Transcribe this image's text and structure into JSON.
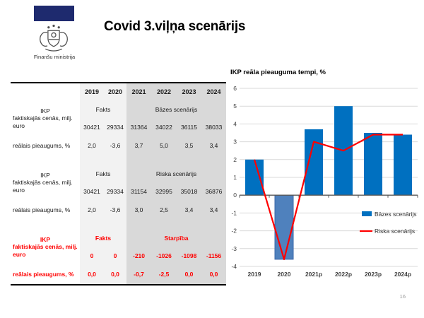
{
  "header": {
    "ministry": "Finanšu ministrija",
    "title": "Covid 3.viļņa scenārijs"
  },
  "table": {
    "col_headers": [
      "2019",
      "2020",
      "2021",
      "2022",
      "2023",
      "2024"
    ],
    "blocks": [
      {
        "label_top": "IKP",
        "label_rest": "faktiskajās cenās, milj. euro",
        "fact_header": "Fakts",
        "scenario_header": "Bāzes scenārijs",
        "values": [
          "30421",
          "29334",
          "31364",
          "34022",
          "36115",
          "38033"
        ],
        "growth_label": "reālais pieaugums, %",
        "growth_values": [
          "2,0",
          "-3,6",
          "3,7",
          "5,0",
          "3,5",
          "3,4"
        ]
      },
      {
        "label_top": "IKP",
        "label_rest": "faktiskajās cenās, milj. euro",
        "fact_header": "Fakts",
        "scenario_header": "Riska scenārijs",
        "values": [
          "30421",
          "29334",
          "31154",
          "32995",
          "35018",
          "36876"
        ],
        "growth_label": "reālais pieaugums, %",
        "growth_values": [
          "2,0",
          "-3,6",
          "3,0",
          "2,5",
          "3,4",
          "3,4"
        ]
      },
      {
        "label_top": "IKP",
        "label_rest": "faktiskajās cenās, milj. euro",
        "fact_header": "Fakts",
        "scenario_header": "Starpība",
        "values": [
          "0",
          "0",
          "-210",
          "-1026",
          "-1098",
          "-1156"
        ],
        "growth_label": "reālais pieaugums, %",
        "growth_values": [
          "0,0",
          "0,0",
          "-0,7",
          "-2,5",
          "0,0",
          "0,0"
        ]
      }
    ]
  },
  "chart_data": {
    "type": "bar",
    "title": "IKP reāla pieauguma tempi, %",
    "categories": [
      "2019",
      "2020",
      "2021p",
      "2022p",
      "2023p",
      "2024p"
    ],
    "series": [
      {
        "name": "Bāzes scenārijs",
        "type": "bar",
        "values": [
          2.0,
          -3.6,
          3.7,
          5.0,
          3.5,
          3.4
        ],
        "color": "#0070C0",
        "negative_color": "#4F81BD",
        "negative_stroke": "#3A66A8"
      },
      {
        "name": "Riska scenārijs",
        "type": "line",
        "values": [
          2.0,
          -3.6,
          3.0,
          2.5,
          3.4,
          3.4
        ],
        "color": "#FF0000"
      }
    ],
    "ylim": [
      -4,
      6
    ],
    "ytick_step": 1,
    "grid": true,
    "legend_position": "right-middle",
    "gridline_color": "#D9D9D9",
    "axis_color": "#595959",
    "tick_label_color": "#404040"
  },
  "colors": {
    "logo_navy": "#1E2A6E",
    "table_fact_bg": "#F2F2F2",
    "table_scenario_bg": "#D9D9D9",
    "difference_text_red": "#FF0000"
  },
  "footer": {
    "page_number": "16"
  }
}
